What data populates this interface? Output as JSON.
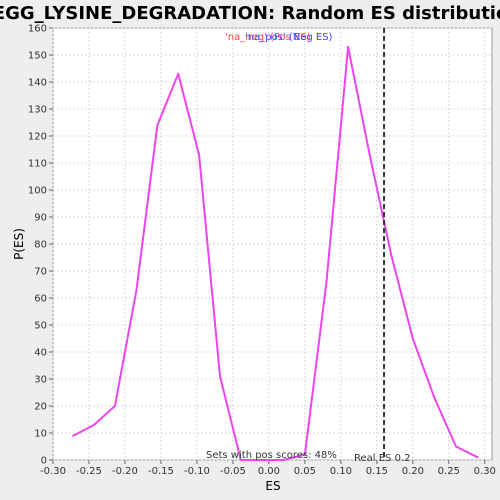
{
  "chart_data": {
    "type": "line",
    "title": "KEGG_LYSINE_DEGRADATION: Random ES distribution",
    "xlabel": "ES",
    "ylabel": "P(ES)",
    "xlim": [
      -0.3,
      0.31
    ],
    "ylim": [
      0,
      160
    ],
    "x_ticks": [
      "-0.30",
      "-0.25",
      "-0.20",
      "-0.15",
      "-0.10",
      "-0.05",
      "0.00",
      "0.05",
      "0.10",
      "0.15",
      "0.20",
      "0.25",
      "0.30"
    ],
    "y_ticks": [
      "0",
      "10",
      "20",
      "30",
      "40",
      "50",
      "60",
      "70",
      "80",
      "90",
      "100",
      "110",
      "120",
      "130",
      "140",
      "150",
      "160"
    ],
    "grid": true,
    "legend_placement": "top-center",
    "legend": [
      {
        "text": "'na_neg' (Pos ES)",
        "color": "#ff4040"
      },
      {
        "text": "'na_pos' (Neg ES)",
        "color": "#4040ff"
      }
    ],
    "series": [
      {
        "color": "#ee44ee",
        "x": [
          -0.272,
          -0.243,
          -0.214,
          -0.184,
          -0.155,
          -0.126,
          -0.097,
          -0.068,
          -0.039,
          -0.01,
          0.02,
          0.05,
          0.08,
          0.11,
          0.14,
          0.17,
          0.2,
          0.23,
          0.26,
          0.29
        ],
        "y": [
          9,
          13,
          20,
          63,
          124,
          143,
          113,
          31,
          0,
          0,
          0,
          2,
          66,
          153,
          113,
          76,
          45,
          23,
          5,
          1
        ]
      }
    ],
    "real_es": 0.16,
    "annotations": {
      "pos_scores": "Sets with pos scores: 48%",
      "real_es": "Real ES 0.2"
    }
  }
}
